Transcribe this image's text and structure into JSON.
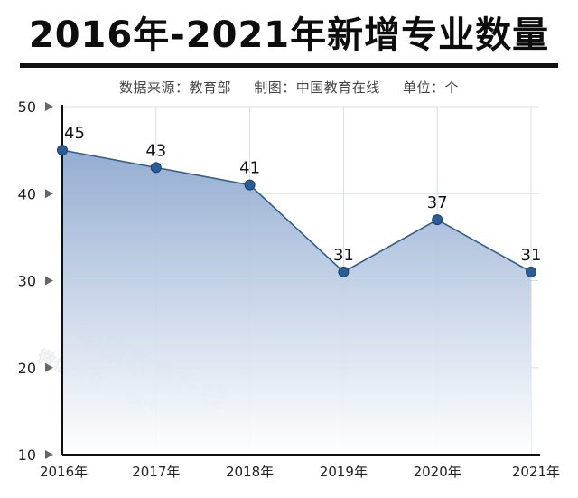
{
  "header": {
    "title": "2016年-2021年新增专业数量",
    "source": "数据来源：教育部",
    "producer": "制图：中国教育在线",
    "unit": "单位：个"
  },
  "watermark": {
    "line1": "中国教育在线",
    "line2": "微信公众号 eol"
  },
  "colors": {
    "line": "#2e5f8f",
    "point": "#2d5c95",
    "fill_top": "#8fa9cf",
    "fill_bottom": "#ffffff",
    "grid": "#d9dde3",
    "axis": "#111111"
  },
  "chart_data": {
    "type": "area",
    "title": "2016年-2021年新增专业数量",
    "categories": [
      "2016年",
      "2017年",
      "2018年",
      "2019年",
      "2020年",
      "2021年"
    ],
    "values": [
      45,
      43,
      41,
      31,
      37,
      31
    ],
    "data_labels": [
      "45",
      "43",
      "41",
      "31",
      "37",
      "31"
    ],
    "yticks": [
      "10",
      "20",
      "30",
      "40",
      "50"
    ],
    "ylim": [
      10,
      50
    ],
    "xlabel": "",
    "ylabel": "",
    "grid": true,
    "legend": "none"
  }
}
